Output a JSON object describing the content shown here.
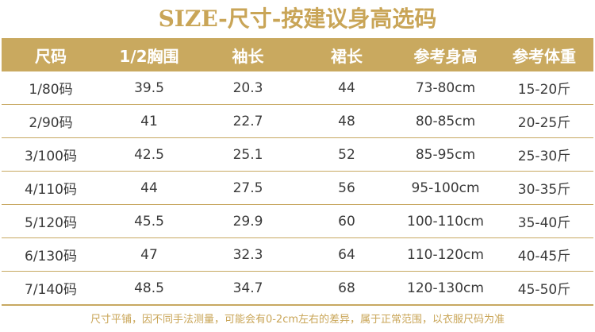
{
  "title": "SIZE-尺寸-按建议身高选码",
  "colors": {
    "accent": "#c9a95f",
    "header_text": "#ffffff",
    "body_text": "#3a3a3a"
  },
  "table": {
    "columns": [
      "尺码",
      "1/2胸围",
      "袖长",
      "裙长",
      "参考身高",
      "参考体重"
    ],
    "rows": [
      [
        "1/80码",
        "39.5",
        "20.3",
        "44",
        "73-80cm",
        "15-20斤"
      ],
      [
        "2/90码",
        "41",
        "22.7",
        "48",
        "80-85cm",
        "20-25斤"
      ],
      [
        "3/100码",
        "42.5",
        "25.1",
        "52",
        "85-95cm",
        "25-30斤"
      ],
      [
        "4/110码",
        "44",
        "27.5",
        "56",
        "95-100cm",
        "30-35斤"
      ],
      [
        "5/120码",
        "45.5",
        "29.9",
        "60",
        "100-110cm",
        "35-40斤"
      ],
      [
        "6/130码",
        "47",
        "32.3",
        "64",
        "110-120cm",
        "40-45斤"
      ],
      [
        "7/140码",
        "48.5",
        "34.7",
        "68",
        "120-130cm",
        "45-50斤"
      ]
    ]
  },
  "footnote": "尺寸平铺，因不同手法测量，可能会有0-2cm左右的差异，属于正常范围，以衣服尺码为准"
}
